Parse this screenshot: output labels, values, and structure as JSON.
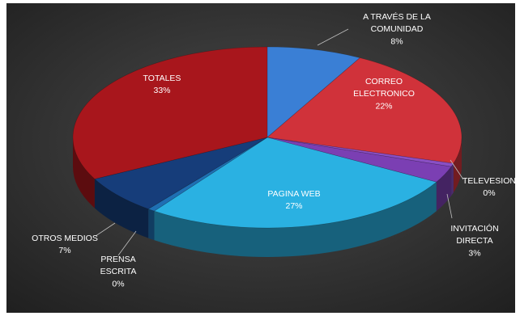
{
  "chart_data": {
    "type": "pie",
    "title": "",
    "slices": [
      {
        "label": "A TRAVÉS DE LA COMUNIDAD",
        "value": 8,
        "display": "8%",
        "color": "#3a7fd5"
      },
      {
        "label": "CORREO ELECTRONICO",
        "value": 22,
        "display": "22%",
        "color": "#d0323a"
      },
      {
        "label": "TELEVESION",
        "value": 0,
        "display": "0%",
        "color": "#8a4fc4"
      },
      {
        "label": "INVITACIÓN DIRECTA",
        "value": 3,
        "display": "3%",
        "color": "#7b3fb3"
      },
      {
        "label": "PAGINA WEB",
        "value": 27,
        "display": "27%",
        "color": "#2ab1e2"
      },
      {
        "label": "PRENSA ESCRITA",
        "value": 0,
        "display": "0%",
        "color": "#1f6fb3"
      },
      {
        "label": "OTROS MEDIOS",
        "value": 7,
        "display": "7%",
        "color": "#163d7a"
      },
      {
        "label": "TOTALES",
        "value": 33,
        "display": "33%",
        "color": "#a8161c"
      }
    ],
    "legend": "none",
    "style": "3d-pie",
    "background": "#2e2e2e"
  }
}
